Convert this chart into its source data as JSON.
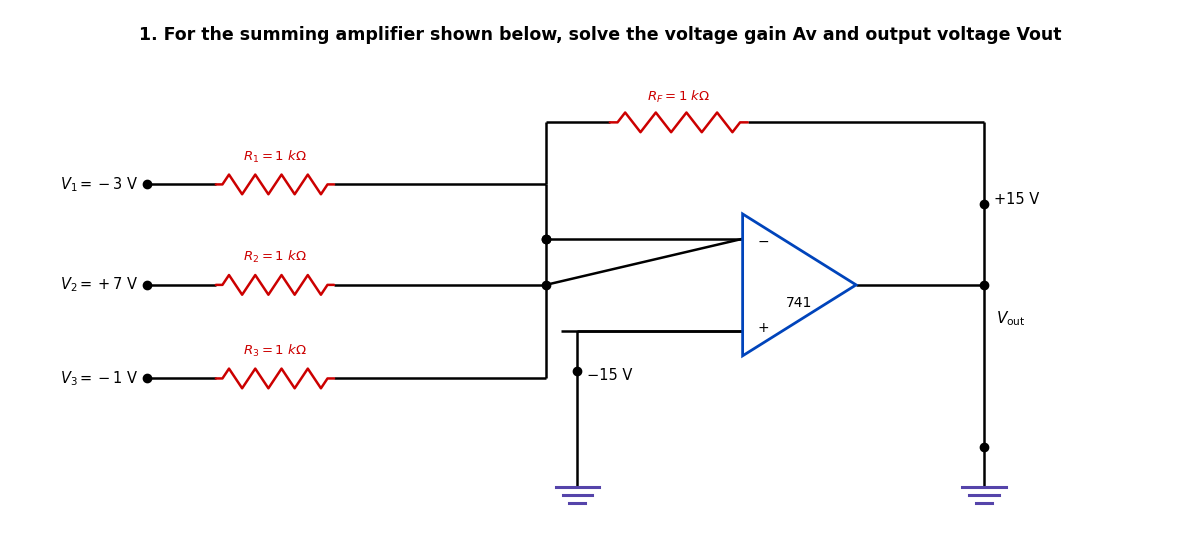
{
  "title": "1. For the summing amplifier shown below, solve the voltage gain Av and output voltage Vout",
  "title_fontsize": 12.5,
  "title_color": "#000000",
  "bg_color": "#ffffff",
  "wire_color": "#000000",
  "resistor_color": "#cc0000",
  "opamp_color": "#0044bb",
  "ground_color": "#5544aa",
  "v1_label": "$V_1 = -3$ V",
  "v2_label": "$V_2 = +7$ V",
  "v3_label": "$V_3 = -1$ V",
  "r1_label": "$R_1 = 1$ k$\\Omega$",
  "r2_label": "$R_2 = 1$ k$\\Omega$",
  "r3_label": "$R_3 = 1$ k$\\Omega$",
  "rf_label": "$R_F = 1$ k$\\Omega$",
  "vcc_label": "+15 V",
  "vee_label": "−15 V",
  "vout_label": "$V_{\\rm out}$",
  "label_741": "741",
  "minus_label": "−",
  "plus_label": "+"
}
